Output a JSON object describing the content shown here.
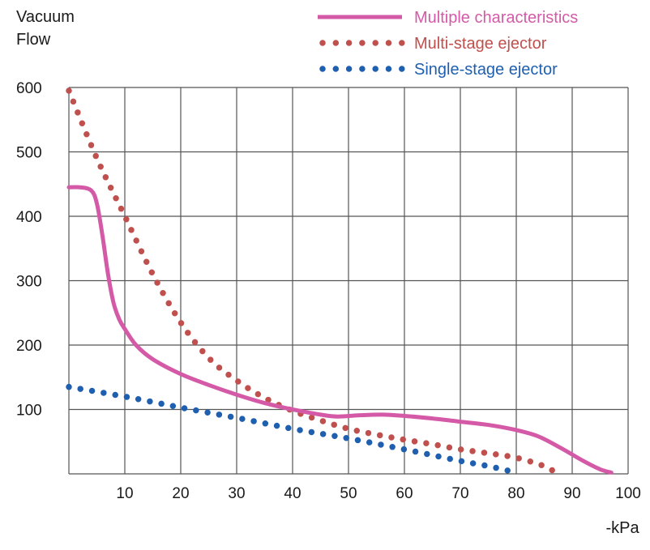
{
  "chart_data": {
    "type": "line",
    "title": "",
    "ylabel_line1": "Vacuum",
    "ylabel_line2": "Flow",
    "xlabel": "-kPa",
    "xlim": [
      0,
      100
    ],
    "ylim": [
      0,
      600
    ],
    "xticks": [
      10,
      20,
      30,
      40,
      50,
      60,
      70,
      80,
      90,
      100
    ],
    "yticks": [
      100,
      200,
      300,
      400,
      500,
      600
    ],
    "grid": true,
    "legend_position": "top-right",
    "series": [
      {
        "name": "Multiple characteristics",
        "color": "#d45aa8",
        "style": "solid",
        "x": [
          0,
          2,
          4,
          5,
          6,
          7,
          8,
          9,
          10,
          12,
          15,
          20,
          25,
          30,
          35,
          40,
          45,
          48,
          52,
          56,
          60,
          65,
          70,
          75,
          80,
          84,
          88,
          92,
          95,
          97
        ],
        "y": [
          445,
          445,
          440,
          420,
          370,
          310,
          265,
          240,
          225,
          200,
          178,
          155,
          138,
          123,
          110,
          100,
          92,
          89,
          91,
          92,
          90,
          86,
          81,
          76,
          68,
          58,
          40,
          20,
          7,
          2
        ]
      },
      {
        "name": "Multi-stage ejector",
        "color": "#c0504d",
        "style": "dotted",
        "x": [
          0,
          5,
          10,
          15,
          20,
          25,
          30,
          35,
          40,
          45,
          50,
          55,
          60,
          65,
          70,
          75,
          80,
          85,
          87
        ],
        "y": [
          595,
          490,
          400,
          310,
          235,
          180,
          145,
          118,
          98,
          83,
          70,
          61,
          53,
          46,
          38,
          32,
          25,
          12,
          2
        ]
      },
      {
        "name": "Single-stage ejector",
        "color": "#1f5fb0",
        "style": "dotted",
        "x": [
          0,
          10,
          20,
          30,
          40,
          50,
          60,
          70,
          75,
          80
        ],
        "y": [
          135,
          120,
          103,
          87,
          70,
          55,
          38,
          20,
          12,
          2
        ]
      }
    ]
  }
}
